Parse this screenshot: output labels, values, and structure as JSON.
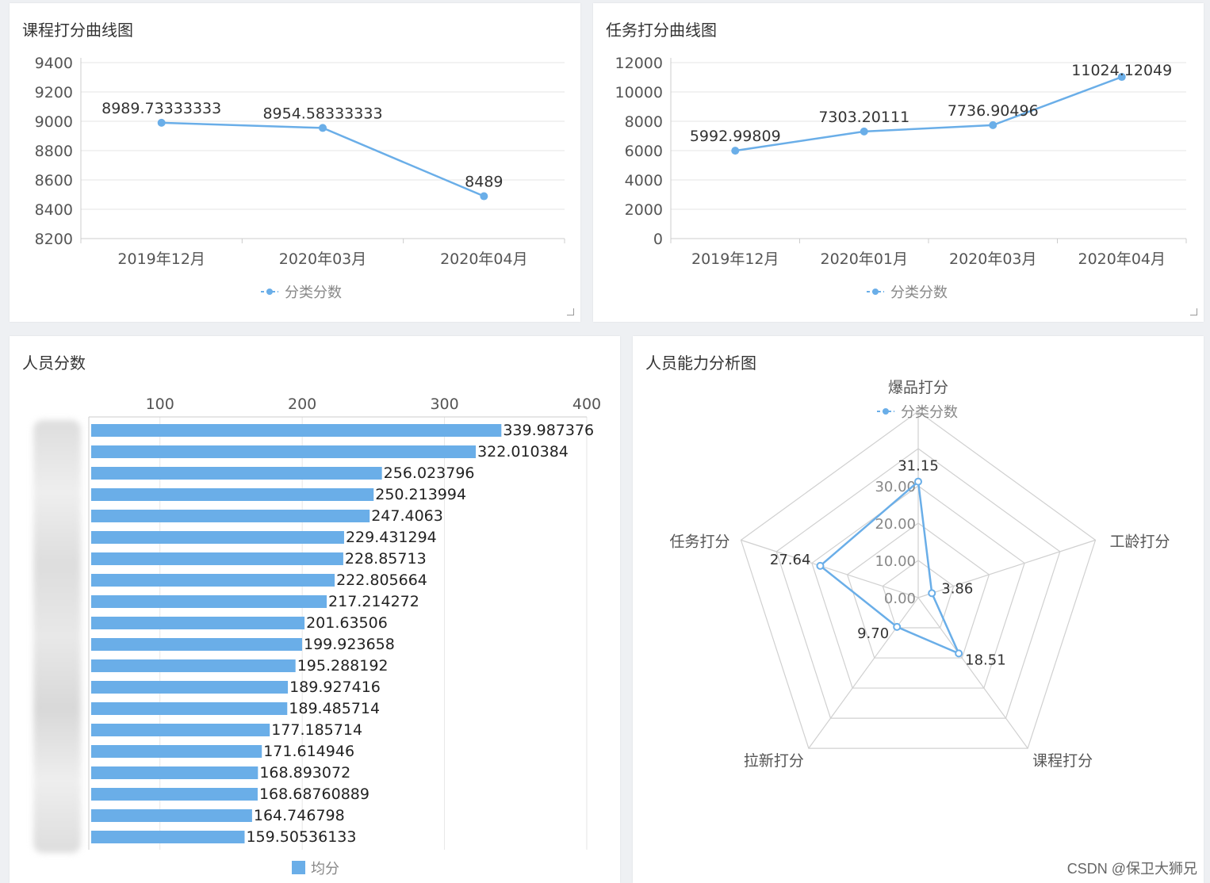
{
  "panels": {
    "course": {
      "title": "课程打分曲线图"
    },
    "task": {
      "title": "任务打分曲线图"
    },
    "people": {
      "title": "人员分数"
    },
    "ability": {
      "title": "人员能力分析图"
    }
  },
  "watermark": "CSDN @保卫大狮兄",
  "colors": {
    "series": "#6aaee8",
    "bar": "#6aaee8",
    "grid": "#e6e6e6",
    "axis": "#cccccc",
    "text": "#555555"
  },
  "chart_data": [
    {
      "id": "course",
      "type": "line",
      "categories": [
        "2019年12月",
        "2020年03月",
        "2020年04月"
      ],
      "series": [
        {
          "name": "分类分数",
          "values": [
            8989.73333333,
            8954.58333333,
            8489
          ]
        }
      ],
      "labels": [
        "8989.73333333",
        "8954.58333333",
        "8489"
      ],
      "yticks": [
        "8200",
        "8400",
        "8600",
        "8800",
        "9000",
        "9200",
        "9400"
      ],
      "ylim": [
        8200,
        9400
      ],
      "grid": true,
      "legend_position": "bottom"
    },
    {
      "id": "task",
      "type": "line",
      "categories": [
        "2019年12月",
        "2020年01月",
        "2020年03月",
        "2020年04月"
      ],
      "series": [
        {
          "name": "分类分数",
          "values": [
            5992.99809,
            7303.20111,
            7736.90496,
            11024.12049
          ]
        }
      ],
      "labels": [
        "5992.99809",
        "7303.20111",
        "7736.90496",
        "11024.12049"
      ],
      "yticks": [
        "0",
        "2000",
        "4000",
        "6000",
        "8000",
        "10000",
        "12000"
      ],
      "ylim": [
        0,
        12000
      ],
      "grid": true,
      "legend_position": "bottom"
    },
    {
      "id": "people",
      "type": "bar",
      "orientation": "horizontal",
      "series": [
        {
          "name": "均分",
          "values": [
            339.987376,
            322.010384,
            256.023796,
            250.213994,
            247.4063,
            229.431294,
            228.85713,
            222.805664,
            217.214272,
            201.63506,
            199.923658,
            195.288192,
            189.927416,
            189.485714,
            177.185714,
            171.614946,
            168.893072,
            168.68760889,
            164.746798,
            159.50536133
          ]
        }
      ],
      "labels": [
        "339.987376",
        "322.010384",
        "256.023796",
        "250.213994",
        "247.4063",
        "229.431294",
        "228.85713",
        "222.805664",
        "217.214272",
        "201.63506",
        "199.923658",
        "195.288192",
        "189.927416",
        "189.485714",
        "177.185714",
        "171.614946",
        "168.893072",
        "168.68760889",
        "164.746798",
        "159.50536133"
      ],
      "xticks": [
        "100",
        "200",
        "300",
        "400"
      ],
      "xlim": [
        50,
        400
      ],
      "xaxis_position": "top",
      "category_labels": "blurred",
      "grid": true,
      "legend_position": "bottom"
    },
    {
      "id": "ability",
      "type": "radar",
      "indicators": [
        "爆品打分",
        "工龄打分",
        "课程打分",
        "拉新打分",
        "任务打分"
      ],
      "series": [
        {
          "name": "分类分数",
          "values": [
            31.15,
            3.86,
            18.51,
            9.7,
            27.64
          ]
        }
      ],
      "labels": [
        "31.15",
        "3.86",
        "18.51",
        "9.70",
        "27.64"
      ],
      "rings": [
        "0.00",
        "10.00",
        "20.00",
        "30.00"
      ],
      "max": 50,
      "legend_position": "top"
    }
  ]
}
